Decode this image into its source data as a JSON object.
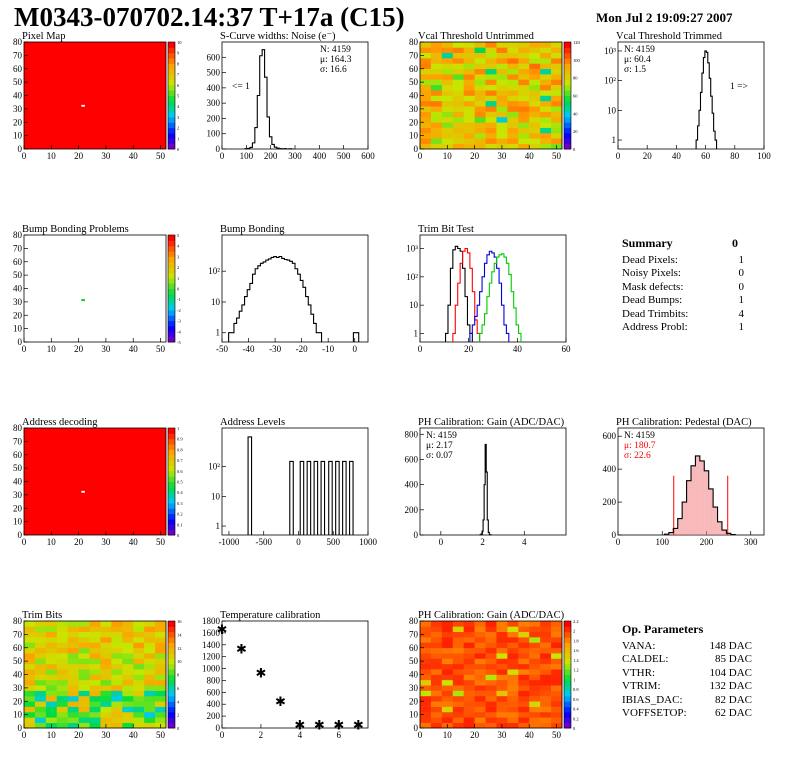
{
  "header": {
    "title": "M0343-070702.14:37 T+17a (C15)",
    "date": "Mon Jul  2 19:09:27 2007"
  },
  "colors": {
    "red": "#ff0000",
    "green": "#00cc00",
    "blue": "#0000dd",
    "black": "#000000",
    "pink": "#f08080"
  },
  "summary": {
    "title": "Summary",
    "total": "0",
    "rows": [
      {
        "label": "Dead Pixels:",
        "value": "1"
      },
      {
        "label": "Noisy Pixels:",
        "value": "0"
      },
      {
        "label": "Mask defects:",
        "value": "0"
      },
      {
        "label": "Dead Bumps:",
        "value": "1"
      },
      {
        "label": "Dead Trimbits:",
        "value": "4"
      },
      {
        "label": "Address Probl:",
        "value": "1"
      }
    ]
  },
  "op_parameters": {
    "title": "Op. Parameters",
    "rows": [
      {
        "label": "VANA:",
        "value": "148 DAC"
      },
      {
        "label": "CALDEL:",
        "value": "85 DAC"
      },
      {
        "label": "VTHR:",
        "value": "104 DAC"
      },
      {
        "label": "VTRIM:",
        "value": "132 DAC"
      },
      {
        "label": "IBIAS_DAC:",
        "value": "82 DAC"
      },
      {
        "label": "VOFFSETOP:",
        "value": "62 DAC"
      }
    ]
  },
  "chart_data": [
    {
      "id": "pixel-map",
      "type": "heatmap",
      "title": "Pixel Map",
      "xlim": [
        0,
        52
      ],
      "ylim": [
        0,
        80
      ],
      "xticks": [
        "0",
        "10",
        "20",
        "30",
        "40",
        "50"
      ],
      "yticks": [
        "0",
        "10",
        "20",
        "30",
        "40",
        "50",
        "60",
        "70",
        "80"
      ],
      "zlim": [
        0,
        10
      ],
      "zticks": [
        "0",
        "1",
        "2",
        "3",
        "4",
        "5",
        "6",
        "7",
        "8",
        "9",
        "10"
      ],
      "fill": "uniform-max",
      "dead_pixel": [
        21,
        32
      ]
    },
    {
      "id": "scurve-noise",
      "type": "line",
      "title": "S-Curve widths: Noise (e⁻)",
      "xlim": [
        0,
        600
      ],
      "ylim": [
        0,
        700
      ],
      "xticks": [
        "0",
        "100",
        "200",
        "300",
        "400",
        "500",
        "600"
      ],
      "yticks": [
        "0",
        "100",
        "200",
        "300",
        "400",
        "500",
        "600"
      ],
      "stats": [
        "N: 4159",
        "μ: 164.3",
        "σ: 16.6"
      ],
      "annotation": "<= 1",
      "series": [
        {
          "x": [
            100,
            110,
            120,
            130,
            140,
            150,
            160,
            170,
            180,
            190,
            200,
            210,
            220,
            230,
            240,
            250,
            260,
            270,
            280,
            290
          ],
          "y": [
            2,
            4,
            10,
            40,
            140,
            350,
            610,
            650,
            470,
            210,
            80,
            30,
            12,
            5,
            2,
            1,
            2,
            0,
            1,
            0
          ]
        }
      ]
    },
    {
      "id": "vcal-untrimmed",
      "type": "heatmap",
      "title": "Vcal Threshold Untrimmed",
      "xlim": [
        0,
        52
      ],
      "ylim": [
        0,
        80
      ],
      "xticks": [
        "0",
        "10",
        "20",
        "30",
        "40",
        "50"
      ],
      "yticks": [
        "0",
        "10",
        "20",
        "30",
        "40",
        "50",
        "60",
        "70",
        "80"
      ],
      "zlim": [
        0,
        120
      ],
      "zticks": [
        "0",
        "20",
        "40",
        "60",
        "80",
        "100",
        "120"
      ],
      "fill": "noisy-orange"
    },
    {
      "id": "vcal-trimmed",
      "type": "line",
      "title": "Vcal Threshold Trimmed",
      "log_y": true,
      "xlim": [
        0,
        100
      ],
      "ylim": [
        0.5,
        2000
      ],
      "xticks": [
        "0",
        "20",
        "40",
        "60",
        "80",
        "100"
      ],
      "yticks": [
        "1",
        "10",
        "10²",
        "10³"
      ],
      "stats": [
        "N: 4159",
        "μ: 60.4",
        "σ:  1.5"
      ],
      "annotation": "1 =>",
      "series": [
        {
          "x": [
            54,
            55,
            56,
            57,
            58,
            59,
            60,
            61,
            62,
            63,
            64,
            65,
            66,
            67
          ],
          "y": [
            1,
            3,
            10,
            40,
            180,
            600,
            1000,
            900,
            400,
            120,
            30,
            8,
            2,
            1
          ]
        }
      ]
    },
    {
      "id": "bump-problems",
      "type": "heatmap",
      "title": "Bump Bonding Problems",
      "xlim": [
        0,
        52
      ],
      "ylim": [
        0,
        80
      ],
      "xticks": [
        "0",
        "10",
        "20",
        "30",
        "40",
        "50"
      ],
      "yticks": [
        "0",
        "10",
        "20",
        "30",
        "40",
        "50",
        "60",
        "70",
        "80"
      ],
      "zlim": [
        -5,
        5
      ],
      "zticks": [
        "-5",
        "-4",
        "-3",
        "-2",
        "-1",
        "0",
        "1",
        "2",
        "3",
        "4",
        "5"
      ],
      "fill": "empty",
      "dead_pixel": [
        21,
        31
      ]
    },
    {
      "id": "bump-bonding",
      "type": "line",
      "title": "Bump Bonding",
      "log_y": true,
      "xlim": [
        -50,
        5
      ],
      "ylim": [
        0.5,
        1500
      ],
      "xticks": [
        "-50",
        "-40",
        "-30",
        "-20",
        "-10",
        "0"
      ],
      "yticks": [
        "1",
        "10",
        "10²"
      ],
      "series": [
        {
          "x": [
            -47,
            -46,
            -45,
            -44,
            -43,
            -42,
            -41,
            -40,
            -39,
            -38,
            -37,
            -36,
            -35,
            -34,
            -33,
            -32,
            -31,
            -30,
            -29,
            -28,
            -27,
            -26,
            -25,
            -24,
            -23,
            -22,
            -21,
            -20,
            -19,
            -18,
            -17,
            -16,
            -15,
            -14,
            -13
          ],
          "y": [
            1,
            1,
            2,
            3,
            5,
            8,
            15,
            25,
            40,
            80,
            120,
            150,
            180,
            200,
            230,
            250,
            280,
            300,
            280,
            300,
            260,
            240,
            230,
            210,
            180,
            120,
            80,
            50,
            30,
            15,
            8,
            4,
            2,
            1,
            1
          ]
        },
        {
          "x": [
            0,
            1
          ],
          "y": [
            1,
            1
          ]
        }
      ]
    },
    {
      "id": "trim-bit-test",
      "type": "line",
      "title": "Trim Bit Test",
      "log_y": true,
      "xlim": [
        0,
        60
      ],
      "ylim": [
        0.5,
        3000
      ],
      "xticks": [
        "0",
        "20",
        "40",
        "60"
      ],
      "yticks": [
        "1",
        "10",
        "10²",
        "10³"
      ],
      "series": [
        {
          "name": "",
          "color": "black",
          "x": [
            11,
            12,
            13,
            14,
            15,
            16,
            17,
            18,
            19,
            20,
            21
          ],
          "y": [
            1,
            10,
            200,
            900,
            1200,
            1000,
            800,
            200,
            20,
            2,
            1
          ]
        },
        {
          "name": "",
          "color": "red",
          "x": [
            14,
            15,
            16,
            17,
            18,
            19,
            20,
            21,
            22,
            23,
            24
          ],
          "y": [
            1,
            10,
            60,
            300,
            800,
            1000,
            700,
            200,
            30,
            3,
            1
          ]
        },
        {
          "name": "",
          "color": "blue",
          "x": [
            21,
            22,
            23,
            24,
            25,
            26,
            27,
            28,
            29,
            30,
            31,
            32,
            33,
            34,
            35,
            36
          ],
          "y": [
            1,
            2,
            4,
            10,
            30,
            100,
            300,
            600,
            800,
            700,
            500,
            200,
            60,
            10,
            2,
            1
          ]
        },
        {
          "name": "",
          "color": "green",
          "x": [
            25,
            26,
            27,
            28,
            29,
            30,
            31,
            32,
            33,
            34,
            35,
            36,
            37,
            38,
            39,
            40,
            41
          ],
          "y": [
            1,
            2,
            5,
            20,
            60,
            150,
            300,
            500,
            600,
            650,
            500,
            300,
            120,
            30,
            8,
            2,
            1
          ]
        }
      ]
    },
    {
      "id": "address-decoding",
      "type": "heatmap",
      "title": "Address decoding",
      "xlim": [
        0,
        52
      ],
      "ylim": [
        0,
        80
      ],
      "xticks": [
        "0",
        "10",
        "20",
        "30",
        "40",
        "50"
      ],
      "yticks": [
        "0",
        "10",
        "20",
        "30",
        "40",
        "50",
        "60",
        "70",
        "80"
      ],
      "zlim": [
        0,
        1
      ],
      "zticks": [
        "0",
        "0.1",
        "0.2",
        "0.3",
        "0.4",
        "0.5",
        "0.6",
        "0.7",
        "0.8",
        "0.9",
        "1"
      ],
      "fill": "uniform-max",
      "dead_pixel": [
        21,
        32
      ]
    },
    {
      "id": "address-levels",
      "type": "line",
      "title": "Address Levels",
      "log_y": true,
      "xlim": [
        -1100,
        1000
      ],
      "ylim": [
        0.5,
        2000
      ],
      "xticks": [
        "-1000",
        "-500",
        "0",
        "500",
        "1000"
      ],
      "yticks": [
        "1",
        "10",
        "10²"
      ],
      "peaks": [
        {
          "x": -700,
          "y": 1000
        },
        {
          "x": -100,
          "y": 150
        },
        {
          "x": 50,
          "y": 150
        },
        {
          "x": 150,
          "y": 150
        },
        {
          "x": 250,
          "y": 150
        },
        {
          "x": 350,
          "y": 150
        },
        {
          "x": 460,
          "y": 150
        },
        {
          "x": 560,
          "y": 150
        },
        {
          "x": 660,
          "y": 150
        },
        {
          "x": 760,
          "y": 150
        }
      ]
    },
    {
      "id": "ph-gain-hist",
      "type": "line",
      "title": "PH Calibration: Gain (ADC/DAC)",
      "xlim": [
        -1,
        6
      ],
      "ylim": [
        0,
        850
      ],
      "xticks": [
        "0",
        "2",
        "4"
      ],
      "yticks": [
        "0",
        "200",
        "400",
        "600",
        "800"
      ],
      "stats": [
        "N: 4159",
        "μ: 2.17",
        "σ: 0.07"
      ],
      "series": [
        {
          "x": [
            1.9,
            1.95,
            2.0,
            2.05,
            2.1,
            2.15,
            2.2,
            2.25,
            2.3,
            2.35,
            2.4
          ],
          "y": [
            2,
            8,
            30,
            120,
            400,
            720,
            500,
            120,
            20,
            3,
            1
          ]
        }
      ]
    },
    {
      "id": "ph-pedestal",
      "type": "line",
      "title": "PH Calibration: Pedestal (DAC)",
      "xlim": [
        0,
        330
      ],
      "ylim": [
        0,
        650
      ],
      "xticks": [
        "0",
        "100",
        "200",
        "300"
      ],
      "yticks": [
        "0",
        "200",
        "400",
        "600"
      ],
      "stats": [
        "N: 4159",
        "μ: 180.7",
        "σ: 22.6"
      ],
      "fit_range": [
        126,
        248
      ],
      "series": [
        {
          "x": [
            110,
            120,
            130,
            140,
            150,
            160,
            170,
            180,
            190,
            200,
            210,
            220,
            230,
            240,
            250,
            260
          ],
          "y": [
            5,
            15,
            40,
            100,
            200,
            330,
            420,
            480,
            450,
            390,
            280,
            170,
            80,
            30,
            10,
            3
          ]
        }
      ]
    },
    {
      "id": "trim-bits",
      "type": "heatmap",
      "title": "Trim Bits",
      "xlim": [
        0,
        52
      ],
      "ylim": [
        0,
        80
      ],
      "xticks": [
        "0",
        "10",
        "20",
        "30",
        "40",
        "50"
      ],
      "yticks": [
        "0",
        "10",
        "20",
        "30",
        "40",
        "50",
        "60",
        "70",
        "80"
      ],
      "zlim": [
        0,
        16
      ],
      "zticks": [
        "0",
        "2",
        "4",
        "6",
        "8",
        "10",
        "12",
        "14",
        "16"
      ],
      "fill": "noisy-green"
    },
    {
      "id": "temperature-calibration",
      "type": "scatter",
      "title": "Temperature calibration",
      "xlim": [
        0,
        7.5
      ],
      "ylim": [
        0,
        1800
      ],
      "xticks": [
        "0",
        "2",
        "4",
        "6"
      ],
      "yticks": [
        "0",
        "200",
        "400",
        "600",
        "800",
        "1000",
        "1200",
        "1400",
        "1600",
        "1800"
      ],
      "x": [
        0,
        1,
        2,
        3,
        4,
        5,
        6,
        7
      ],
      "y": [
        1650,
        1320,
        920,
        440,
        40,
        40,
        40,
        40
      ]
    },
    {
      "id": "ph-gain-map",
      "type": "heatmap",
      "title": "PH Calibration: Gain (ADC/DAC)",
      "xlim": [
        0,
        52
      ],
      "ylim": [
        0,
        80
      ],
      "xticks": [
        "0",
        "10",
        "20",
        "30",
        "40",
        "50"
      ],
      "yticks": [
        "0",
        "10",
        "20",
        "30",
        "40",
        "50",
        "60",
        "70",
        "80"
      ],
      "zlim": [
        0,
        2.2
      ],
      "zticks": [
        "0",
        "0.2",
        "0.4",
        "0.6",
        "0.8",
        "1",
        "1.2",
        "1.4",
        "1.6",
        "1.8",
        "2",
        "2.2"
      ],
      "fill": "noisy-red"
    }
  ]
}
